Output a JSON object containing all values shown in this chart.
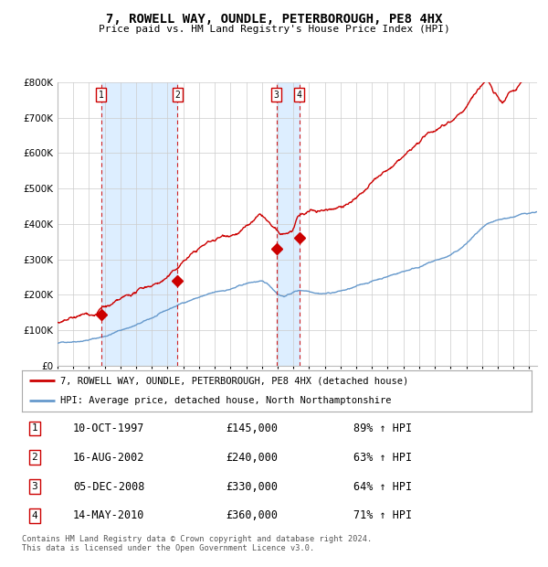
{
  "title": "7, ROWELL WAY, OUNDLE, PETERBOROUGH, PE8 4HX",
  "subtitle": "Price paid vs. HM Land Registry's House Price Index (HPI)",
  "legend_line1": "7, ROWELL WAY, OUNDLE, PETERBOROUGH, PE8 4HX (detached house)",
  "legend_line2": "HPI: Average price, detached house, North Northamptonshire",
  "footer": "Contains HM Land Registry data © Crown copyright and database right 2024.\nThis data is licensed under the Open Government Licence v3.0.",
  "hpi_color": "#6699cc",
  "price_color": "#cc0000",
  "background_color": "#ffffff",
  "grid_color": "#cccccc",
  "shade_color": "#ddeeff",
  "ylim": [
    0,
    800000
  ],
  "yticks": [
    0,
    100000,
    200000,
    300000,
    400000,
    500000,
    600000,
    700000,
    800000
  ],
  "xlim_start": 1995.0,
  "xlim_end": 2025.5,
  "sales": [
    {
      "num": 1,
      "date_label": "10-OCT-1997",
      "price": 145000,
      "pct": "89%",
      "year_x": 1997.78
    },
    {
      "num": 2,
      "date_label": "16-AUG-2002",
      "price": 240000,
      "pct": "63%",
      "year_x": 2002.62
    },
    {
      "num": 3,
      "date_label": "05-DEC-2008",
      "price": 330000,
      "pct": "64%",
      "year_x": 2008.93
    },
    {
      "num": 4,
      "date_label": "14-MAY-2010",
      "price": 360000,
      "pct": "71%",
      "year_x": 2010.37
    }
  ],
  "shade_ranges": [
    [
      1997.78,
      2002.62
    ],
    [
      2008.93,
      2010.37
    ]
  ],
  "hpi_data": [
    [
      1995.0,
      63000
    ],
    [
      1996.0,
      70000
    ],
    [
      1997.0,
      78000
    ],
    [
      1998.0,
      88000
    ],
    [
      1999.0,
      105000
    ],
    [
      2000.0,
      120000
    ],
    [
      2001.0,
      138000
    ],
    [
      2002.0,
      158000
    ],
    [
      2003.0,
      178000
    ],
    [
      2004.0,
      195000
    ],
    [
      2005.0,
      205000
    ],
    [
      2006.0,
      215000
    ],
    [
      2007.0,
      228000
    ],
    [
      2008.0,
      232000
    ],
    [
      2008.5,
      220000
    ],
    [
      2009.0,
      200000
    ],
    [
      2009.5,
      195000
    ],
    [
      2010.0,
      205000
    ],
    [
      2011.0,
      210000
    ],
    [
      2012.0,
      208000
    ],
    [
      2013.0,
      215000
    ],
    [
      2014.0,
      225000
    ],
    [
      2015.0,
      240000
    ],
    [
      2016.0,
      255000
    ],
    [
      2017.0,
      270000
    ],
    [
      2018.0,
      285000
    ],
    [
      2019.0,
      300000
    ],
    [
      2020.0,
      315000
    ],
    [
      2021.0,
      345000
    ],
    [
      2022.0,
      385000
    ],
    [
      2023.0,
      400000
    ],
    [
      2024.0,
      410000
    ],
    [
      2025.0,
      420000
    ],
    [
      2025.5,
      425000
    ]
  ],
  "price_data": [
    [
      1995.0,
      120000
    ],
    [
      1995.5,
      118000
    ],
    [
      1996.0,
      122000
    ],
    [
      1996.5,
      125000
    ],
    [
      1997.0,
      128000
    ],
    [
      1997.5,
      132000
    ],
    [
      1997.78,
      145000
    ],
    [
      1998.0,
      148000
    ],
    [
      1998.5,
      152000
    ],
    [
      1999.0,
      158000
    ],
    [
      1999.5,
      165000
    ],
    [
      2000.0,
      175000
    ],
    [
      2000.5,
      185000
    ],
    [
      2001.0,
      195000
    ],
    [
      2001.5,
      205000
    ],
    [
      2002.0,
      218000
    ],
    [
      2002.62,
      240000
    ],
    [
      2003.0,
      260000
    ],
    [
      2003.5,
      278000
    ],
    [
      2004.0,
      295000
    ],
    [
      2004.5,
      308000
    ],
    [
      2005.0,
      318000
    ],
    [
      2005.5,
      328000
    ],
    [
      2006.0,
      338000
    ],
    [
      2006.5,
      348000
    ],
    [
      2007.0,
      360000
    ],
    [
      2007.5,
      375000
    ],
    [
      2008.0,
      382000
    ],
    [
      2008.5,
      355000
    ],
    [
      2008.93,
      330000
    ],
    [
      2009.0,
      325000
    ],
    [
      2009.5,
      318000
    ],
    [
      2010.0,
      332000
    ],
    [
      2010.37,
      360000
    ],
    [
      2010.5,
      362000
    ],
    [
      2011.0,
      368000
    ],
    [
      2011.5,
      372000
    ],
    [
      2012.0,
      375000
    ],
    [
      2012.5,
      382000
    ],
    [
      2013.0,
      392000
    ],
    [
      2013.5,
      405000
    ],
    [
      2014.0,
      418000
    ],
    [
      2014.5,
      432000
    ],
    [
      2015.0,
      450000
    ],
    [
      2015.5,
      468000
    ],
    [
      2016.0,
      480000
    ],
    [
      2016.5,
      495000
    ],
    [
      2017.0,
      512000
    ],
    [
      2017.5,
      530000
    ],
    [
      2018.0,
      548000
    ],
    [
      2018.5,
      565000
    ],
    [
      2019.0,
      580000
    ],
    [
      2019.5,
      598000
    ],
    [
      2020.0,
      615000
    ],
    [
      2020.5,
      635000
    ],
    [
      2021.0,
      658000
    ],
    [
      2021.5,
      690000
    ],
    [
      2022.0,
      718000
    ],
    [
      2022.3,
      730000
    ],
    [
      2022.5,
      720000
    ],
    [
      2022.7,
      700000
    ],
    [
      2023.0,
      685000
    ],
    [
      2023.3,
      672000
    ],
    [
      2023.5,
      680000
    ],
    [
      2023.7,
      695000
    ],
    [
      2024.0,
      700000
    ],
    [
      2024.3,
      710000
    ],
    [
      2024.5,
      720000
    ],
    [
      2025.0,
      740000
    ],
    [
      2025.5,
      760000
    ]
  ]
}
